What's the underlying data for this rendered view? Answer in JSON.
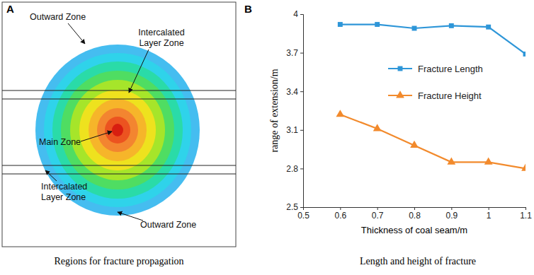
{
  "diagram": {
    "panel": "A",
    "caption": "Regions for fracture propagation",
    "labels": [
      "Outward Zone",
      "Intercalated\nLayer Zone",
      "Main Zone",
      "Intercalated\nLayer Zone",
      "Outward Zone"
    ]
  },
  "chart_data": {
    "type": "line",
    "panel": "B",
    "caption": "Length and height of fracture",
    "x_label": "Thickness of coal seam/m",
    "y_label": "range of extension/m",
    "x": [
      0.6,
      0.7,
      0.8,
      0.9,
      1,
      1.1
    ],
    "series": [
      {
        "name": "Fracture Length",
        "color": "#2e96d8",
        "marker": "square",
        "line_style": "solid",
        "values": [
          3.92,
          3.92,
          3.89,
          3.91,
          3.9,
          3.69
        ]
      },
      {
        "name": "Fracture Height",
        "color": "#f28a2c",
        "marker": "triangle",
        "line_style": "solid",
        "values": [
          3.22,
          3.11,
          2.98,
          2.85,
          2.85,
          2.8
        ]
      }
    ],
    "xlim": [
      0.5,
      1.1
    ],
    "xticks": [
      0.5,
      0.6,
      0.7,
      0.8,
      0.9,
      1,
      1.1
    ],
    "ylim": [
      2.5,
      4
    ],
    "yticks": [
      2.5,
      2.8,
      3.1,
      3.4,
      3.7,
      4
    ],
    "grid": false,
    "legend": "upper right"
  }
}
